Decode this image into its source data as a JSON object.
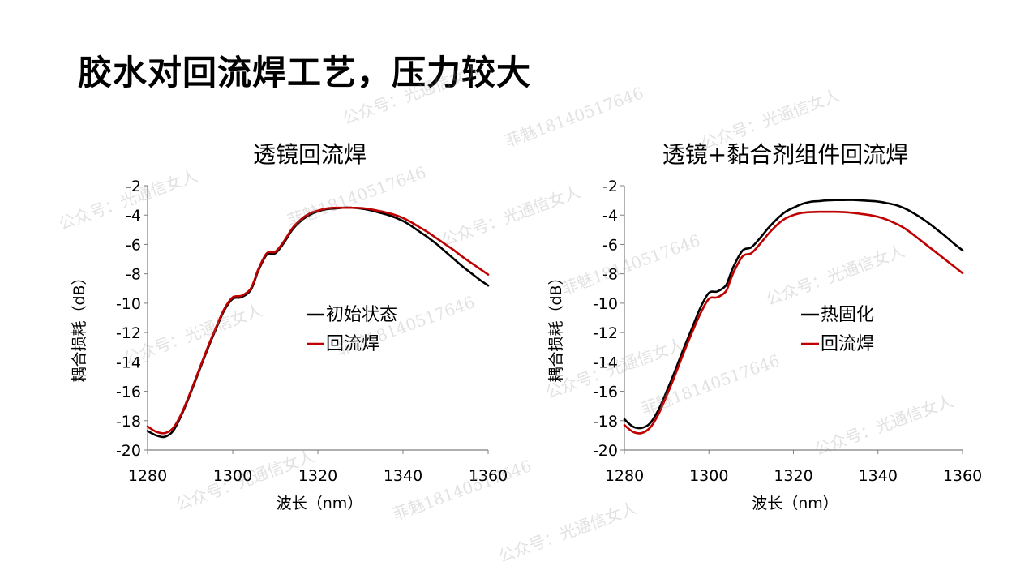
{
  "slide": {
    "title": "胶水对回流焊工艺，压力较大"
  },
  "watermarks": [
    "公众号：光通信女人",
    "菲魅18140517646"
  ],
  "chart_data": [
    {
      "type": "line",
      "title": "透镜回流焊",
      "xlabel": "波长（nm）",
      "ylabel": "耦合损耗（dB）",
      "xlim": [
        1280,
        1360
      ],
      "ylim": [
        -20,
        -2
      ],
      "xticks": [
        1280,
        1300,
        1320,
        1340,
        1360
      ],
      "yticks": [
        -2,
        -4,
        -6,
        -8,
        -10,
        -12,
        -14,
        -16,
        -18,
        -20
      ],
      "grid": false,
      "legend_position": "center-right",
      "series": [
        {
          "name": "初始状态",
          "color": "#000000",
          "x": [
            1280,
            1282,
            1284,
            1286,
            1288,
            1290,
            1292,
            1294,
            1296,
            1298,
            1300,
            1302,
            1304,
            1305,
            1306,
            1308,
            1310,
            1312,
            1314,
            1316,
            1318,
            1320,
            1322,
            1324,
            1326,
            1328,
            1330,
            1332,
            1334,
            1336,
            1338,
            1340,
            1342,
            1344,
            1346,
            1348,
            1350,
            1352,
            1354,
            1356,
            1358,
            1360
          ],
          "y": [
            -18.7,
            -19.0,
            -19.1,
            -18.7,
            -17.6,
            -16.2,
            -14.7,
            -13.2,
            -11.8,
            -10.5,
            -9.7,
            -9.6,
            -9.2,
            -8.6,
            -7.8,
            -6.7,
            -6.6,
            -5.9,
            -5.0,
            -4.4,
            -4.0,
            -3.75,
            -3.6,
            -3.55,
            -3.5,
            -3.5,
            -3.55,
            -3.65,
            -3.8,
            -3.95,
            -4.15,
            -4.4,
            -4.75,
            -5.15,
            -5.55,
            -6.0,
            -6.5,
            -7.0,
            -7.5,
            -7.95,
            -8.4,
            -8.8
          ]
        },
        {
          "name": "回流焊",
          "color": "#c00000",
          "x": [
            1280,
            1282,
            1284,
            1286,
            1288,
            1290,
            1292,
            1294,
            1296,
            1298,
            1300,
            1302,
            1304,
            1305,
            1306,
            1308,
            1310,
            1312,
            1314,
            1316,
            1318,
            1320,
            1322,
            1324,
            1326,
            1328,
            1330,
            1332,
            1334,
            1336,
            1338,
            1340,
            1342,
            1344,
            1346,
            1348,
            1350,
            1352,
            1354,
            1356,
            1358,
            1360
          ],
          "y": [
            -18.4,
            -18.75,
            -18.85,
            -18.5,
            -17.5,
            -16.1,
            -14.6,
            -13.1,
            -11.7,
            -10.4,
            -9.6,
            -9.5,
            -9.1,
            -8.5,
            -7.7,
            -6.6,
            -6.5,
            -5.8,
            -4.9,
            -4.3,
            -3.9,
            -3.7,
            -3.55,
            -3.5,
            -3.5,
            -3.5,
            -3.52,
            -3.58,
            -3.7,
            -3.82,
            -3.98,
            -4.2,
            -4.5,
            -4.85,
            -5.2,
            -5.6,
            -6.0,
            -6.4,
            -6.85,
            -7.25,
            -7.65,
            -8.05
          ]
        }
      ]
    },
    {
      "type": "line",
      "title": "透镜+黏合剂组件回流焊",
      "xlabel": "波长（nm）",
      "ylabel": "耦合损耗（dB）",
      "xlim": [
        1280,
        1360
      ],
      "ylim": [
        -20,
        -2
      ],
      "xticks": [
        1280,
        1300,
        1320,
        1340,
        1360
      ],
      "yticks": [
        -2,
        -4,
        -6,
        -8,
        -10,
        -12,
        -14,
        -16,
        -18,
        -20
      ],
      "grid": false,
      "legend_position": "center-right",
      "series": [
        {
          "name": "热固化",
          "color": "#000000",
          "x": [
            1280,
            1282,
            1284,
            1286,
            1288,
            1290,
            1292,
            1294,
            1296,
            1298,
            1300,
            1302,
            1304,
            1305,
            1306,
            1308,
            1310,
            1312,
            1314,
            1316,
            1318,
            1320,
            1322,
            1324,
            1326,
            1328,
            1330,
            1332,
            1334,
            1336,
            1338,
            1340,
            1342,
            1344,
            1346,
            1348,
            1350,
            1352,
            1354,
            1356,
            1358,
            1360
          ],
          "y": [
            -17.9,
            -18.4,
            -18.5,
            -18.2,
            -17.3,
            -16.0,
            -14.6,
            -13.1,
            -11.7,
            -10.3,
            -9.3,
            -9.2,
            -8.8,
            -8.1,
            -7.4,
            -6.4,
            -6.2,
            -5.6,
            -4.9,
            -4.3,
            -3.8,
            -3.5,
            -3.25,
            -3.1,
            -3.05,
            -3.0,
            -2.98,
            -2.98,
            -2.97,
            -3.0,
            -3.03,
            -3.08,
            -3.18,
            -3.3,
            -3.5,
            -3.8,
            -4.15,
            -4.55,
            -5.0,
            -5.45,
            -5.95,
            -6.4
          ]
        },
        {
          "name": "回流焊",
          "color": "#c00000",
          "x": [
            1280,
            1282,
            1284,
            1286,
            1288,
            1290,
            1292,
            1294,
            1296,
            1298,
            1300,
            1302,
            1304,
            1305,
            1306,
            1308,
            1310,
            1312,
            1314,
            1316,
            1318,
            1320,
            1322,
            1324,
            1326,
            1328,
            1330,
            1332,
            1334,
            1336,
            1338,
            1340,
            1342,
            1344,
            1346,
            1348,
            1350,
            1352,
            1354,
            1356,
            1358,
            1360
          ],
          "y": [
            -18.3,
            -18.75,
            -18.85,
            -18.5,
            -17.6,
            -16.3,
            -14.9,
            -13.4,
            -12.0,
            -10.7,
            -9.7,
            -9.6,
            -9.2,
            -8.5,
            -7.8,
            -6.8,
            -6.6,
            -6.0,
            -5.3,
            -4.7,
            -4.25,
            -4.0,
            -3.85,
            -3.8,
            -3.78,
            -3.78,
            -3.78,
            -3.8,
            -3.85,
            -3.92,
            -4.0,
            -4.12,
            -4.3,
            -4.55,
            -4.85,
            -5.25,
            -5.7,
            -6.15,
            -6.6,
            -7.05,
            -7.5,
            -7.95
          ]
        }
      ]
    }
  ]
}
